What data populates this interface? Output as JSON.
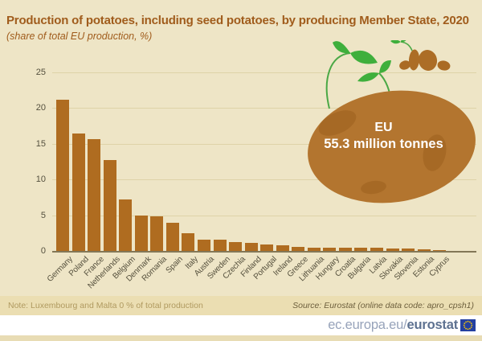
{
  "chart_data": {
    "type": "bar",
    "title": "Production of potatoes, including seed potatoes, by producing Member State, 2020",
    "subtitle": "(share of total EU production, %)",
    "xlabel": "",
    "ylabel": "share of total EU production, %",
    "categories": [
      "Germany",
      "Poland",
      "France",
      "Netherlands",
      "Belgium",
      "Denmark",
      "Romania",
      "Spain",
      "Italy",
      "Austria",
      "Sweden",
      "Czechia",
      "Finland",
      "Portugal",
      "Ireland",
      "Greece",
      "Lithuania",
      "Hungary",
      "Croatia",
      "Bulgaria",
      "Latvia",
      "Slovakia",
      "Slovenia",
      "Estonia",
      "Cyprus"
    ],
    "values": [
      21.2,
      16.5,
      15.7,
      12.7,
      7.2,
      5.0,
      4.9,
      3.9,
      2.5,
      1.6,
      1.6,
      1.3,
      1.1,
      0.9,
      0.8,
      0.6,
      0.5,
      0.5,
      0.4,
      0.4,
      0.4,
      0.3,
      0.3,
      0.2,
      0.1
    ],
    "ylim": [
      0,
      25
    ],
    "yticks": [
      0,
      5,
      10,
      15,
      20,
      25
    ],
    "grid": true,
    "legend_position": "none",
    "annotation": {
      "line1": "EU",
      "line2": "55.3 million tonnes"
    }
  },
  "colors": {
    "background": "#eee5c6",
    "bar": "#af6c20",
    "potato": "#b3752f",
    "potato_spot": "#9d6020",
    "leaf_green": "#3faf3c",
    "stem_green": "#4aa845",
    "title_brown": "#a05c1c",
    "gridline": "#ded3a8",
    "flag_blue": "#2440a0",
    "flag_stars": "#ffcc00"
  },
  "note": {
    "left": "Note: Luxembourg and Malta 0 % of total production",
    "right": "Source: Eurostat (online data code: apro_cpsh1)"
  },
  "brand": {
    "url_prefix": "ec.europa.eu/",
    "url_bold": "eurostat"
  }
}
